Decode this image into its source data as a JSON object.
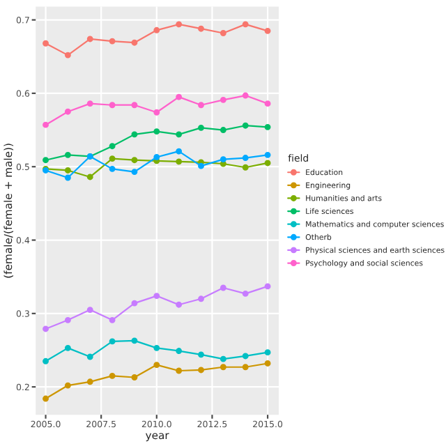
{
  "chart_data": {
    "type": "line",
    "xlabel": "year",
    "ylabel": "(female/(female + male))",
    "legend_title": "field",
    "legend": "right",
    "grid": true,
    "marker": "circle",
    "line_style": "solid",
    "x": [
      2005,
      2006,
      2007,
      2008,
      2009,
      2010,
      2011,
      2012,
      2013,
      2014,
      2015
    ],
    "xlim": [
      2004.55,
      2015.5
    ],
    "xticks": [
      {
        "value": 2005,
        "label": "2005.0"
      },
      {
        "value": 2007.5,
        "label": "2007.5"
      },
      {
        "value": 2010,
        "label": "2010.0"
      },
      {
        "value": 2012.5,
        "label": "2012.5"
      },
      {
        "value": 2015,
        "label": "2015.0"
      }
    ],
    "ylim": [
      0.162,
      0.718
    ],
    "yticks": [
      0.2,
      0.3,
      0.4,
      0.5,
      0.6,
      0.7
    ],
    "series": [
      {
        "name": "Education",
        "color": "#f8766d",
        "values": [
          0.668,
          0.652,
          0.674,
          0.671,
          0.669,
          0.686,
          0.694,
          0.688,
          0.682,
          0.694,
          0.685
        ]
      },
      {
        "name": "Engineering",
        "color": "#cd9600",
        "values": [
          0.184,
          0.202,
          0.207,
          0.215,
          0.213,
          0.23,
          0.222,
          0.223,
          0.227,
          0.227,
          0.232
        ]
      },
      {
        "name": "Humanities and arts",
        "color": "#7cae00",
        "values": [
          0.497,
          0.495,
          0.486,
          0.511,
          0.509,
          0.508,
          0.507,
          0.506,
          0.504,
          0.499,
          0.505
        ]
      },
      {
        "name": "Life sciences",
        "color": "#00be67",
        "values": [
          0.509,
          0.516,
          0.514,
          0.528,
          0.544,
          0.548,
          0.544,
          0.553,
          0.55,
          0.556,
          0.554
        ]
      },
      {
        "name": "Mathematics and computer sciences",
        "color": "#00bfc4",
        "values": [
          0.235,
          0.253,
          0.241,
          0.262,
          0.263,
          0.253,
          0.249,
          0.244,
          0.238,
          0.242,
          0.247
        ]
      },
      {
        "name": "Otherb",
        "color": "#00a9ff",
        "values": [
          0.495,
          0.485,
          0.514,
          0.497,
          0.493,
          0.513,
          0.521,
          0.501,
          0.51,
          0.512,
          0.516
        ]
      },
      {
        "name": "Physical sciences and earth sciences",
        "color": "#c77cff",
        "values": [
          0.279,
          0.291,
          0.305,
          0.291,
          0.314,
          0.324,
          0.312,
          0.32,
          0.335,
          0.327,
          0.337
        ]
      },
      {
        "name": "Psychology and social sciences",
        "color": "#ff61cc",
        "values": [
          0.557,
          0.575,
          0.586,
          0.584,
          0.584,
          0.574,
          0.595,
          0.584,
          0.591,
          0.597,
          0.586
        ]
      }
    ]
  }
}
